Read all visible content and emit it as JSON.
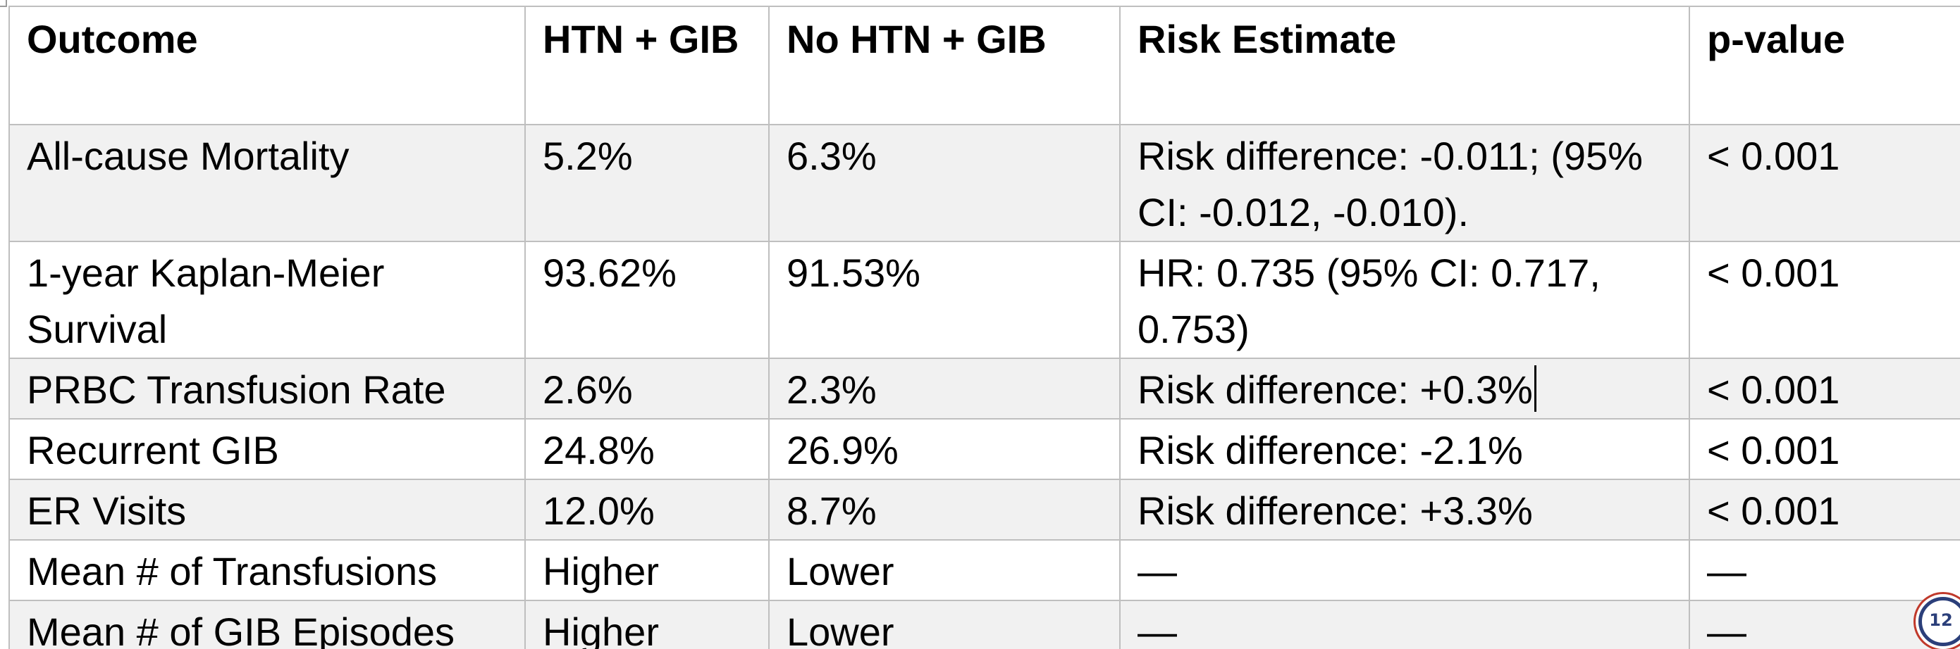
{
  "table": {
    "headers": [
      "Outcome",
      "HTN + GIB",
      "No HTN + GIB",
      "Risk Estimate",
      "p-value"
    ],
    "rows": [
      {
        "outcome": "All-cause Mortality",
        "htn_gib": "5.2%",
        "no_htn_gib": "6.3%",
        "risk_estimate": "Risk difference: -0.011; (95% CI: -0.012, -0.010).",
        "p_value": "< 0.001"
      },
      {
        "outcome": "1-year Kaplan-Meier Survival",
        "htn_gib": "93.62%",
        "no_htn_gib": "91.53%",
        "risk_estimate": "HR: 0.735 (95% CI: 0.717, 0.753)",
        "p_value": "< 0.001"
      },
      {
        "outcome": "PRBC Transfusion Rate",
        "htn_gib": "2.6%",
        "no_htn_gib": "2.3%",
        "risk_estimate": "Risk difference: +0.3%",
        "p_value": "< 0.001"
      },
      {
        "outcome": "Recurrent GIB",
        "htn_gib": "24.8%",
        "no_htn_gib": "26.9%",
        "risk_estimate": "Risk difference: -2.1%",
        "p_value": "< 0.001"
      },
      {
        "outcome": "ER Visits",
        "htn_gib": "12.0%",
        "no_htn_gib": "8.7%",
        "risk_estimate": "Risk difference: +3.3%",
        "p_value": "< 0.001"
      },
      {
        "outcome": "Mean # of Transfusions",
        "htn_gib": "Higher",
        "no_htn_gib": "Lower",
        "risk_estimate": "—",
        "p_value": "—"
      },
      {
        "outcome": "Mean # of GIB Episodes",
        "htn_gib": "Higher",
        "no_htn_gib": "Lower",
        "risk_estimate": "—",
        "p_value": "—"
      }
    ]
  },
  "page_badge": {
    "number": "12"
  },
  "colors": {
    "border": "#bfbfbf",
    "shaded_row": "#f1f1f1",
    "badge_blue": "#2b3f7a",
    "badge_red": "#c0392b"
  }
}
